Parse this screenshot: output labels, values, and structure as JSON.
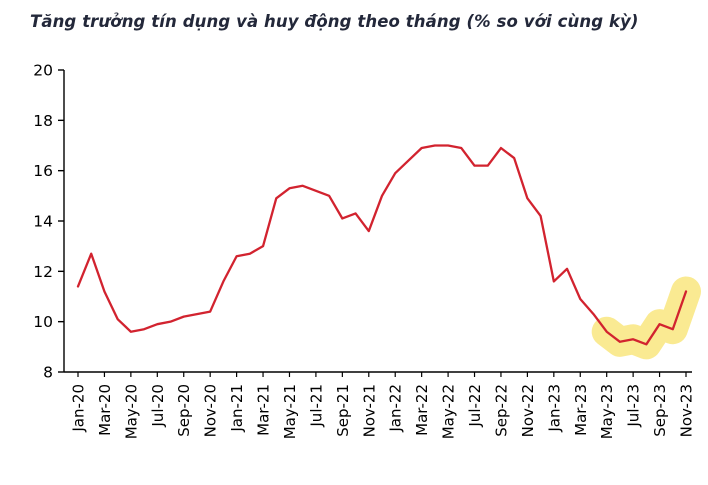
{
  "page": {
    "background": "#ffffff"
  },
  "chart_data": {
    "type": "line",
    "title": "Tăng trưởng tín dụng và huy động theo tháng (% so với cùng kỳ)",
    "x": [
      "Jan-20",
      "Feb-20",
      "Mar-20",
      "Apr-20",
      "May-20",
      "Jun-20",
      "Jul-20",
      "Aug-20",
      "Sep-20",
      "Oct-20",
      "Nov-20",
      "Dec-20",
      "Jan-21",
      "Feb-21",
      "Mar-21",
      "Apr-21",
      "May-21",
      "Jun-21",
      "Jul-21",
      "Aug-21",
      "Sep-21",
      "Oct-21",
      "Nov-21",
      "Dec-21",
      "Jan-22",
      "Feb-22",
      "Mar-22",
      "Apr-22",
      "May-22",
      "Jun-22",
      "Jul-22",
      "Aug-22",
      "Sep-22",
      "Oct-22",
      "Nov-22",
      "Dec-22",
      "Jan-23",
      "Feb-23",
      "Mar-23",
      "Apr-23",
      "May-23",
      "Jun-23",
      "Jul-23",
      "Aug-23",
      "Sep-23",
      "Oct-23",
      "Nov-23"
    ],
    "values": [
      11.4,
      12.7,
      11.2,
      10.1,
      9.6,
      9.7,
      9.9,
      10.0,
      10.2,
      10.3,
      10.4,
      11.6,
      12.6,
      12.7,
      13.0,
      14.9,
      15.3,
      15.4,
      15.2,
      15.0,
      14.1,
      14.3,
      13.6,
      15.0,
      15.9,
      16.4,
      16.9,
      17.0,
      17.0,
      16.9,
      16.2,
      16.2,
      16.9,
      16.5,
      14.9,
      14.2,
      11.6,
      12.1,
      10.9,
      10.3,
      9.6,
      9.2,
      9.3,
      9.1,
      9.9,
      9.7,
      11.2
    ],
    "ylim": [
      8,
      20
    ],
    "yticks": [
      8,
      10,
      12,
      14,
      16,
      18,
      20
    ],
    "xtick_every": 2,
    "grid": false,
    "legend": "none",
    "line_color": "#D2232F",
    "axis_color": "#000000",
    "highlight": {
      "from": "May-23",
      "to": "Nov-23",
      "color": "#FAE98C"
    }
  }
}
